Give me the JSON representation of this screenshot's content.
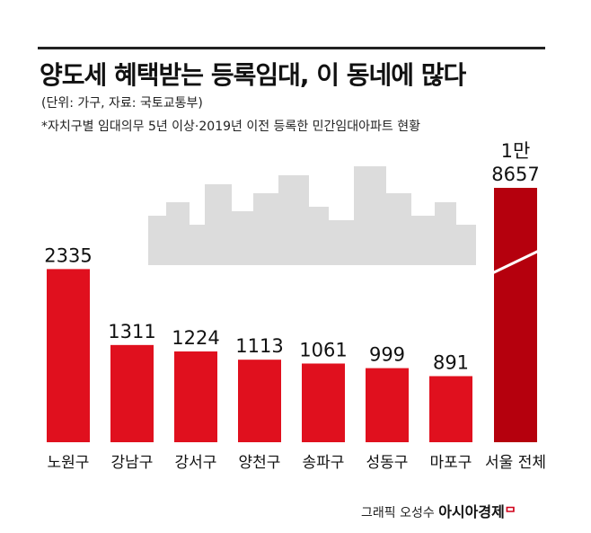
{
  "header": {
    "title": "양도세 혜택받는 등록임대, 이 동네에 많다",
    "subtitle": "(단위: 가구, 자료: 국토교통부)",
    "note": "*자치구별 임대의무 5년 이상·2019년 이전 등록한 민간임대아파트 현황"
  },
  "footer": {
    "credit": "그래픽 오성수",
    "brand": "아시아경제"
  },
  "colors": {
    "bar": "#e0101e",
    "total_bar": "#b5000d",
    "skyline": "#dcdcdc"
  },
  "chart_data": {
    "type": "bar",
    "title": "양도세 혜택받는 등록임대, 이 동네에 많다",
    "unit": "가구",
    "categories": [
      "노원구",
      "강남구",
      "강서구",
      "양천구",
      "송파구",
      "성동구",
      "마포구",
      "서울 전체"
    ],
    "values": [
      2335,
      1311,
      1224,
      1113,
      1061,
      999,
      891,
      18657
    ],
    "value_labels": [
      "2335",
      "1311",
      "1224",
      "1113",
      "1061",
      "999",
      "891",
      "1만\n8657"
    ],
    "axis_break": {
      "category": "서울 전체"
    },
    "grid": false,
    "legend": "none"
  }
}
